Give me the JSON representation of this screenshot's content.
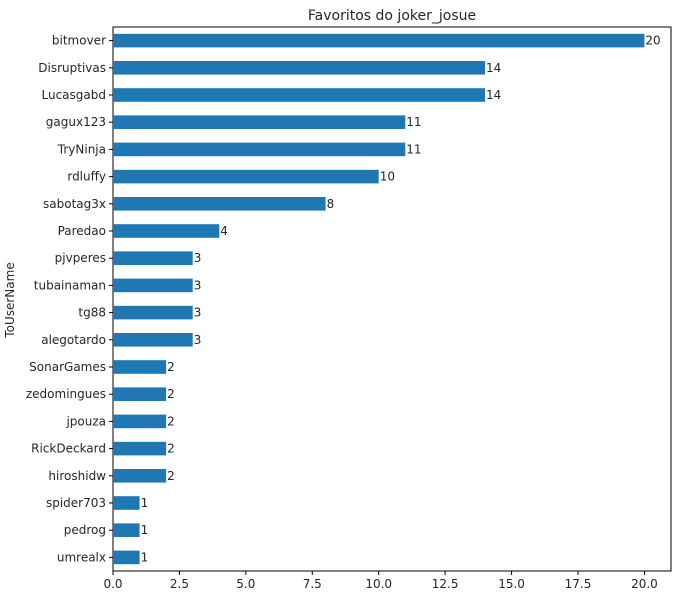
{
  "chart_data": {
    "type": "bar",
    "orientation": "horizontal",
    "title": "Favoritos do joker_josue",
    "xlabel": "",
    "ylabel": "ToUserName",
    "xlim": [
      0,
      21
    ],
    "xticks": [
      "0.0",
      "2.5",
      "5.0",
      "7.5",
      "10.0",
      "12.5",
      "15.0",
      "17.5",
      "20.0"
    ],
    "xtick_values": [
      0,
      2.5,
      5,
      7.5,
      10,
      12.5,
      15,
      17.5,
      20
    ],
    "grid": false,
    "bar_color": "#1f77b4",
    "categories": [
      "bitmover",
      "Disruptivas",
      "Lucasgabd",
      "gagux123",
      "TryNinja",
      "rdluffy",
      "sabotag3x",
      "Paredao",
      "pjvperes",
      "tubainaman",
      "tg88",
      "alegotardo",
      "SonarGames",
      "zedomingues",
      "jpouza",
      "RickDeckard",
      "hiroshidw",
      "spider703",
      "pedrog",
      "umrealx"
    ],
    "values": [
      20,
      14,
      14,
      11,
      11,
      10,
      8,
      4,
      3,
      3,
      3,
      3,
      2,
      2,
      2,
      2,
      2,
      1,
      1,
      1
    ],
    "data_labels": [
      "20",
      "14",
      "14",
      "11",
      "11",
      "10",
      "8",
      "4",
      "3",
      "3",
      "3",
      "3",
      "2",
      "2",
      "2",
      "2",
      "2",
      "1",
      "1",
      "1"
    ]
  }
}
